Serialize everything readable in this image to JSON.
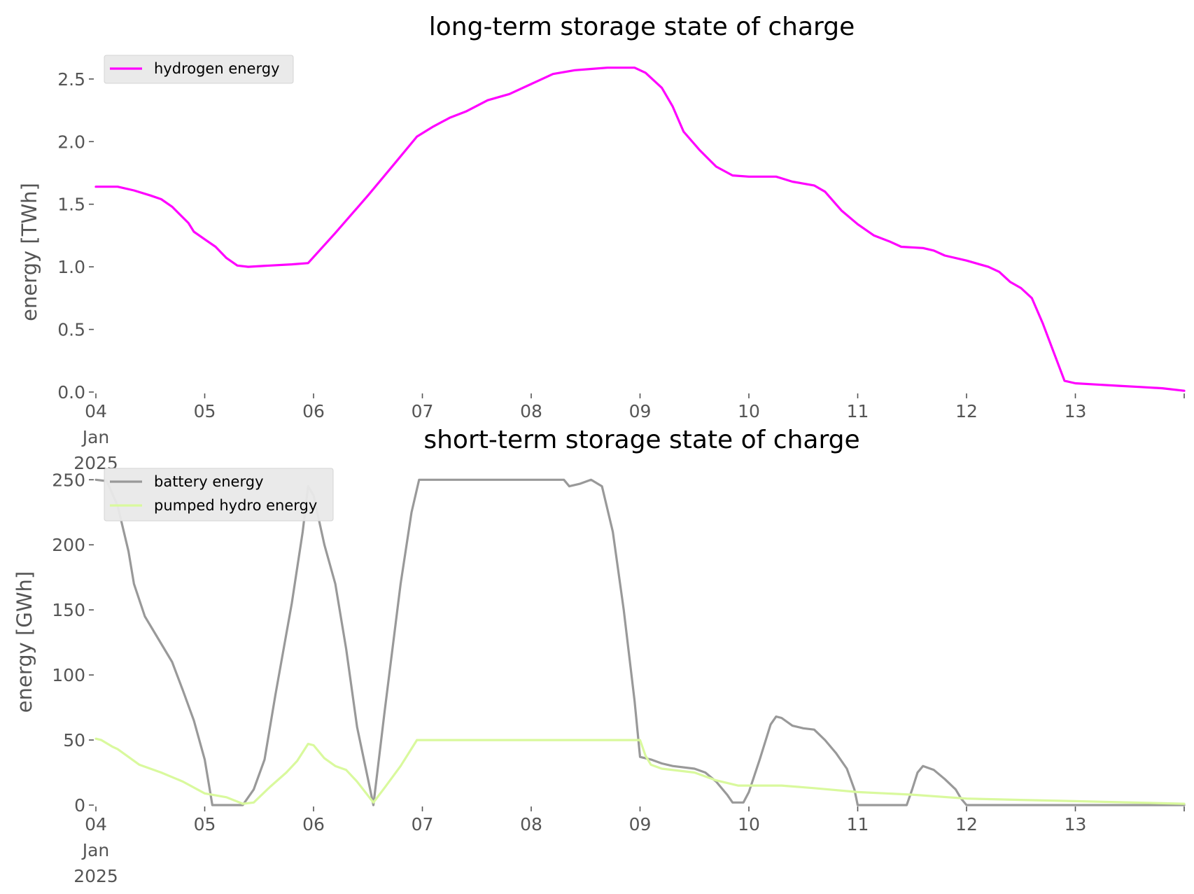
{
  "chart_data": [
    {
      "type": "line",
      "title": "long-term storage state of charge",
      "xlabel": "",
      "ylabel": "energy [TWh]",
      "xlim": [
        4,
        14
      ],
      "ylim": [
        0,
        2.65
      ],
      "yticks": [
        0,
        0.5,
        1.0,
        1.5,
        2.0,
        2.5
      ],
      "ytick_labels": [
        "0.0",
        "0.5",
        "1.0",
        "1.5",
        "2.0",
        "2.5"
      ],
      "xticks": [
        {
          "value": 4,
          "lines": [
            "04",
            "Jan",
            "2025"
          ]
        },
        {
          "value": 5,
          "lines": [
            "05"
          ]
        },
        {
          "value": 6,
          "lines": [
            "06"
          ]
        },
        {
          "value": 7,
          "lines": [
            "07"
          ]
        },
        {
          "value": 8,
          "lines": [
            "08"
          ]
        },
        {
          "value": 9,
          "lines": [
            "09"
          ]
        },
        {
          "value": 10,
          "lines": [
            "10"
          ]
        },
        {
          "value": 11,
          "lines": [
            "11"
          ]
        },
        {
          "value": 12,
          "lines": [
            "12"
          ]
        },
        {
          "value": 13,
          "lines": [
            "13"
          ]
        }
      ],
      "grid": false,
      "legend_placement": "upper-left",
      "series": [
        {
          "name": "hydrogen energy",
          "color": "#ff00ff",
          "points": [
            [
              4.0,
              1.64
            ],
            [
              4.2,
              1.64
            ],
            [
              4.35,
              1.61
            ],
            [
              4.5,
              1.57
            ],
            [
              4.6,
              1.54
            ],
            [
              4.7,
              1.48
            ],
            [
              4.85,
              1.35
            ],
            [
              4.9,
              1.28
            ],
            [
              5.0,
              1.22
            ],
            [
              5.1,
              1.16
            ],
            [
              5.2,
              1.07
            ],
            [
              5.3,
              1.01
            ],
            [
              5.4,
              1.0
            ],
            [
              5.6,
              1.01
            ],
            [
              5.8,
              1.02
            ],
            [
              5.95,
              1.03
            ],
            [
              6.2,
              1.27
            ],
            [
              6.5,
              1.57
            ],
            [
              6.75,
              1.83
            ],
            [
              6.95,
              2.04
            ],
            [
              7.1,
              2.12
            ],
            [
              7.25,
              2.19
            ],
            [
              7.4,
              2.24
            ],
            [
              7.6,
              2.33
            ],
            [
              7.8,
              2.38
            ],
            [
              8.0,
              2.46
            ],
            [
              8.2,
              2.54
            ],
            [
              8.4,
              2.57
            ],
            [
              8.55,
              2.58
            ],
            [
              8.7,
              2.59
            ],
            [
              8.95,
              2.59
            ],
            [
              9.05,
              2.55
            ],
            [
              9.2,
              2.43
            ],
            [
              9.3,
              2.28
            ],
            [
              9.4,
              2.08
            ],
            [
              9.55,
              1.93
            ],
            [
              9.7,
              1.8
            ],
            [
              9.85,
              1.73
            ],
            [
              10.0,
              1.72
            ],
            [
              10.25,
              1.72
            ],
            [
              10.4,
              1.68
            ],
            [
              10.6,
              1.65
            ],
            [
              10.7,
              1.6
            ],
            [
              10.85,
              1.45
            ],
            [
              11.0,
              1.34
            ],
            [
              11.15,
              1.25
            ],
            [
              11.3,
              1.2
            ],
            [
              11.4,
              1.16
            ],
            [
              11.6,
              1.15
            ],
            [
              11.7,
              1.13
            ],
            [
              11.8,
              1.09
            ],
            [
              12.0,
              1.05
            ],
            [
              12.2,
              1.0
            ],
            [
              12.3,
              0.96
            ],
            [
              12.4,
              0.88
            ],
            [
              12.5,
              0.83
            ],
            [
              12.6,
              0.75
            ],
            [
              12.7,
              0.55
            ],
            [
              12.8,
              0.32
            ],
            [
              12.9,
              0.09
            ],
            [
              13.0,
              0.07
            ],
            [
              13.2,
              0.06
            ],
            [
              13.4,
              0.05
            ],
            [
              13.6,
              0.04
            ],
            [
              13.8,
              0.03
            ],
            [
              14.0,
              0.01
            ]
          ]
        }
      ]
    },
    {
      "type": "line",
      "title": "short-term storage state of charge",
      "xlabel": "",
      "ylabel": "energy [GWh]",
      "xlim": [
        4,
        14
      ],
      "ylim": [
        0,
        255
      ],
      "yticks": [
        0,
        50,
        100,
        150,
        200,
        250
      ],
      "ytick_labels": [
        "0",
        "50",
        "100",
        "150",
        "200",
        "250"
      ],
      "xticks": [
        {
          "value": 4,
          "lines": [
            "04",
            "Jan",
            "2025"
          ]
        },
        {
          "value": 5,
          "lines": [
            "05"
          ]
        },
        {
          "value": 6,
          "lines": [
            "06"
          ]
        },
        {
          "value": 7,
          "lines": [
            "07"
          ]
        },
        {
          "value": 8,
          "lines": [
            "08"
          ]
        },
        {
          "value": 9,
          "lines": [
            "09"
          ]
        },
        {
          "value": 10,
          "lines": [
            "10"
          ]
        },
        {
          "value": 11,
          "lines": [
            "11"
          ]
        },
        {
          "value": 12,
          "lines": [
            "12"
          ]
        },
        {
          "value": 13,
          "lines": [
            "13"
          ]
        }
      ],
      "grid": false,
      "legend_placement": "upper-left",
      "series": [
        {
          "name": "battery energy",
          "color": "#999999",
          "points": [
            [
              4.0,
              250
            ],
            [
              4.1,
              249
            ],
            [
              4.2,
              230
            ],
            [
              4.3,
              195
            ],
            [
              4.35,
              170
            ],
            [
              4.45,
              145
            ],
            [
              4.5,
              138
            ],
            [
              4.7,
              110
            ],
            [
              4.8,
              88
            ],
            [
              4.9,
              65
            ],
            [
              5.0,
              35
            ],
            [
              5.05,
              10
            ],
            [
              5.07,
              0
            ],
            [
              5.35,
              0
            ],
            [
              5.45,
              12
            ],
            [
              5.55,
              35
            ],
            [
              5.65,
              85
            ],
            [
              5.8,
              155
            ],
            [
              5.9,
              210
            ],
            [
              5.95,
              245
            ],
            [
              6.0,
              238
            ],
            [
              6.1,
              200
            ],
            [
              6.2,
              170
            ],
            [
              6.3,
              120
            ],
            [
              6.4,
              60
            ],
            [
              6.5,
              20
            ],
            [
              6.55,
              0
            ],
            [
              6.65,
              70
            ],
            [
              6.8,
              170
            ],
            [
              6.9,
              225
            ],
            [
              6.97,
              250
            ],
            [
              8.3,
              250
            ],
            [
              8.35,
              245
            ],
            [
              8.45,
              247
            ],
            [
              8.55,
              250
            ],
            [
              8.65,
              245
            ],
            [
              8.75,
              210
            ],
            [
              8.85,
              150
            ],
            [
              8.95,
              80
            ],
            [
              9.0,
              37
            ],
            [
              9.1,
              35
            ],
            [
              9.2,
              32
            ],
            [
              9.3,
              30
            ],
            [
              9.5,
              28
            ],
            [
              9.6,
              25
            ],
            [
              9.7,
              18
            ],
            [
              9.8,
              8
            ],
            [
              9.85,
              2
            ],
            [
              9.95,
              2
            ],
            [
              10.0,
              10
            ],
            [
              10.1,
              35
            ],
            [
              10.2,
              62
            ],
            [
              10.25,
              68
            ],
            [
              10.3,
              67
            ],
            [
              10.35,
              64
            ],
            [
              10.4,
              61
            ],
            [
              10.5,
              59
            ],
            [
              10.6,
              58
            ],
            [
              10.7,
              50
            ],
            [
              10.8,
              40
            ],
            [
              10.9,
              28
            ],
            [
              10.97,
              12
            ],
            [
              11.0,
              0
            ],
            [
              11.45,
              0
            ],
            [
              11.5,
              12
            ],
            [
              11.55,
              25
            ],
            [
              11.6,
              30
            ],
            [
              11.7,
              27
            ],
            [
              11.8,
              20
            ],
            [
              11.9,
              12
            ],
            [
              11.95,
              5
            ],
            [
              12.0,
              0
            ],
            [
              14.0,
              0
            ]
          ]
        },
        {
          "name": "pumped hydro energy",
          "color": "#d9f99d",
          "points": [
            [
              4.0,
              51
            ],
            [
              4.05,
              50
            ],
            [
              4.15,
              45
            ],
            [
              4.2,
              43
            ],
            [
              4.3,
              37
            ],
            [
              4.4,
              31
            ],
            [
              4.6,
              25
            ],
            [
              4.8,
              18
            ],
            [
              5.0,
              9
            ],
            [
              5.2,
              6
            ],
            [
              5.35,
              1
            ],
            [
              5.45,
              2
            ],
            [
              5.6,
              14
            ],
            [
              5.75,
              25
            ],
            [
              5.85,
              34
            ],
            [
              5.95,
              47
            ],
            [
              6.0,
              46
            ],
            [
              6.1,
              36
            ],
            [
              6.2,
              30
            ],
            [
              6.3,
              27
            ],
            [
              6.4,
              18
            ],
            [
              6.55,
              2
            ],
            [
              6.65,
              13
            ],
            [
              6.8,
              30
            ],
            [
              6.95,
              50
            ],
            [
              9.0,
              50
            ],
            [
              9.05,
              38
            ],
            [
              9.1,
              31
            ],
            [
              9.2,
              28
            ],
            [
              9.5,
              25
            ],
            [
              9.7,
              19
            ],
            [
              9.9,
              15
            ],
            [
              10.3,
              15
            ],
            [
              10.6,
              13
            ],
            [
              11.0,
              10
            ],
            [
              11.5,
              8
            ],
            [
              12.0,
              5
            ],
            [
              12.5,
              4
            ],
            [
              13.0,
              3
            ],
            [
              14.0,
              1
            ]
          ]
        }
      ]
    }
  ]
}
